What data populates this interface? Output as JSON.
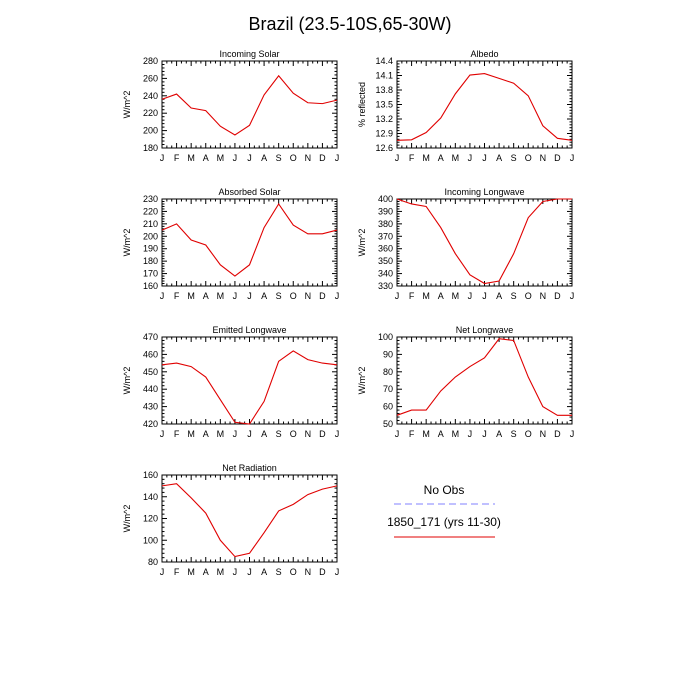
{
  "figure_title": "Brazil (23.5-10S,65-30W)",
  "legend": {
    "obs_label": "No Obs",
    "obs_color": "#8080ff",
    "model_label": "1850_171 (yrs 11-30)",
    "model_color": "#e00000"
  },
  "chart_data": [
    {
      "type": "line",
      "title": "Incoming Solar",
      "ylabel": "W/m^2",
      "xlabel": "",
      "categories": [
        "J",
        "F",
        "M",
        "A",
        "M",
        "J",
        "J",
        "A",
        "S",
        "O",
        "N",
        "D",
        "J"
      ],
      "ylim": [
        180,
        280
      ],
      "yticks": [
        180,
        200,
        220,
        240,
        260,
        280
      ],
      "yticklabels": [
        "180",
        "200",
        "220",
        "240",
        "260",
        "280"
      ],
      "series": [
        {
          "name": "1850_171 (yrs 11-30)",
          "values": [
            236,
            242,
            226,
            223,
            205,
            195,
            206,
            241,
            263,
            243,
            232,
            231,
            235
          ]
        }
      ]
    },
    {
      "type": "line",
      "title": "Albedo",
      "ylabel": "% reflected",
      "xlabel": "",
      "categories": [
        "J",
        "F",
        "M",
        "A",
        "M",
        "J",
        "J",
        "A",
        "S",
        "O",
        "N",
        "D",
        "J"
      ],
      "ylim": [
        12.6,
        14.4
      ],
      "yticks": [
        12.6,
        12.9,
        13.2,
        13.5,
        13.8,
        14.1,
        14.4
      ],
      "yticklabels": [
        "12.6",
        "12.9",
        "13.2",
        "13.5",
        "13.8",
        "14.1",
        "14.4"
      ],
      "series": [
        {
          "name": "1850_171 (yrs 11-30)",
          "values": [
            12.76,
            12.77,
            12.92,
            13.22,
            13.72,
            14.11,
            14.14,
            14.04,
            13.94,
            13.68,
            13.06,
            12.8,
            12.76
          ]
        }
      ]
    },
    {
      "type": "line",
      "title": "Absorbed Solar",
      "ylabel": "W/m^2",
      "xlabel": "",
      "categories": [
        "J",
        "F",
        "M",
        "A",
        "M",
        "J",
        "J",
        "A",
        "S",
        "O",
        "N",
        "D",
        "J"
      ],
      "ylim": [
        160,
        230
      ],
      "yticks": [
        160,
        170,
        180,
        190,
        200,
        210,
        220,
        230
      ],
      "yticklabels": [
        "160",
        "170",
        "180",
        "190",
        "200",
        "210",
        "220",
        "230"
      ],
      "series": [
        {
          "name": "1850_171 (yrs 11-30)",
          "values": [
            205,
            210,
            197,
            193,
            177,
            168,
            177,
            207,
            226,
            209,
            202,
            202,
            205
          ]
        }
      ]
    },
    {
      "type": "line",
      "title": "Incoming Longwave",
      "ylabel": "W/m^2",
      "xlabel": "",
      "categories": [
        "J",
        "F",
        "M",
        "A",
        "M",
        "J",
        "J",
        "A",
        "S",
        "O",
        "N",
        "D",
        "J"
      ],
      "ylim": [
        330,
        400
      ],
      "yticks": [
        330,
        340,
        350,
        360,
        370,
        380,
        390,
        400
      ],
      "yticklabels": [
        "330",
        "340",
        "350",
        "360",
        "370",
        "380",
        "390",
        "400"
      ],
      "series": [
        {
          "name": "1850_171 (yrs 11-30)",
          "values": [
            400,
            396,
            394,
            377,
            356,
            339,
            332,
            334,
            356,
            385,
            398,
            400,
            400
          ]
        }
      ]
    },
    {
      "type": "line",
      "title": "Emitted Longwave",
      "ylabel": "W/m^2",
      "xlabel": "",
      "categories": [
        "J",
        "F",
        "M",
        "A",
        "M",
        "J",
        "J",
        "A",
        "S",
        "O",
        "N",
        "D",
        "J"
      ],
      "ylim": [
        420,
        470
      ],
      "yticks": [
        420,
        430,
        440,
        450,
        460,
        470
      ],
      "yticklabels": [
        "420",
        "430",
        "440",
        "450",
        "460",
        "470"
      ],
      "series": [
        {
          "name": "1850_171 (yrs 11-30)",
          "values": [
            454,
            455,
            453,
            447,
            434,
            421,
            420,
            433,
            456,
            462,
            457,
            455,
            454
          ]
        }
      ]
    },
    {
      "type": "line",
      "title": "Net Longwave",
      "ylabel": "W/m^2",
      "xlabel": "",
      "categories": [
        "J",
        "F",
        "M",
        "A",
        "M",
        "J",
        "J",
        "A",
        "S",
        "O",
        "N",
        "D",
        "J"
      ],
      "ylim": [
        50,
        100
      ],
      "yticks": [
        50,
        60,
        70,
        80,
        90,
        100
      ],
      "yticklabels": [
        "50",
        "60",
        "70",
        "80",
        "90",
        "100"
      ],
      "series": [
        {
          "name": "1850_171 (yrs 11-30)",
          "values": [
            55,
            58,
            58,
            69,
            77,
            83,
            88,
            99,
            98,
            77,
            60,
            55,
            55
          ]
        }
      ]
    },
    {
      "type": "line",
      "title": "Net Radiation",
      "ylabel": "W/m^2",
      "xlabel": "",
      "categories": [
        "J",
        "F",
        "M",
        "A",
        "M",
        "J",
        "J",
        "A",
        "S",
        "O",
        "N",
        "D",
        "J"
      ],
      "ylim": [
        80,
        160
      ],
      "yticks": [
        80,
        100,
        120,
        140,
        160
      ],
      "yticklabels": [
        "80",
        "100",
        "120",
        "140",
        "160"
      ],
      "series": [
        {
          "name": "1850_171 (yrs 11-30)",
          "values": [
            150,
            152,
            139,
            125,
            100,
            85,
            88,
            107,
            127,
            133,
            142,
            147,
            150
          ]
        }
      ]
    }
  ]
}
